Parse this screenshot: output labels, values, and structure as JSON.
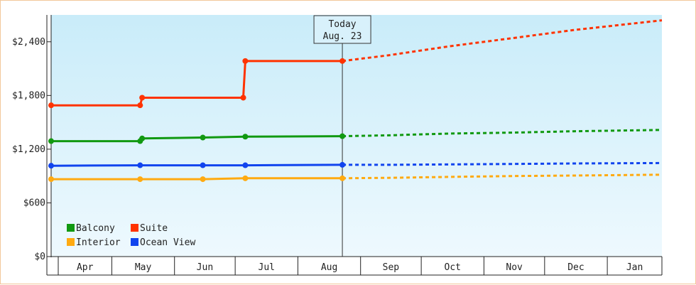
{
  "chart_data": {
    "type": "line",
    "title": "",
    "xlabel": "",
    "ylabel": "",
    "x_tick_labels": [
      "Apr",
      "May",
      "Jun",
      "Jul",
      "Aug",
      "Sep",
      "Oct",
      "Nov",
      "Dec",
      "Jan"
    ],
    "y_ticks": [
      0,
      600,
      1200,
      1800,
      2400
    ],
    "y_tick_labels": [
      "$0",
      "$600",
      "$1,200",
      "$1,800",
      "$2,400"
    ],
    "ylim": [
      0,
      2700
    ],
    "xlim": [
      "Apr 1",
      "Jan 28"
    ],
    "today_marker": {
      "line1": "Today",
      "line2": "Aug. 23",
      "date": "Aug 23"
    },
    "legend": {
      "placement": "bottom-left"
    },
    "series": [
      {
        "name": "Suite",
        "color": "#ff3300",
        "actual": [
          [
            "Apr 1",
            1690
          ],
          [
            "May 15",
            1690
          ],
          [
            "May 16",
            1775
          ],
          [
            "Jul 5",
            1775
          ],
          [
            "Jul 6",
            2185
          ],
          [
            "Aug 23",
            2185
          ]
        ],
        "forecast": [
          [
            "Aug 23",
            2185
          ],
          [
            "Sep 15",
            2250
          ],
          [
            "Oct 15",
            2350
          ],
          [
            "Nov 15",
            2440
          ],
          [
            "Dec 15",
            2530
          ],
          [
            "Jan 28",
            2640
          ]
        ]
      },
      {
        "name": "Balcony",
        "color": "#119911",
        "actual": [
          [
            "Apr 1",
            1290
          ],
          [
            "May 15",
            1290
          ],
          [
            "May 16",
            1320
          ],
          [
            "Jun 15",
            1330
          ],
          [
            "Jul 6",
            1340
          ],
          [
            "Aug 23",
            1345
          ]
        ],
        "forecast": [
          [
            "Aug 23",
            1345
          ],
          [
            "Sep 15",
            1355
          ],
          [
            "Oct 15",
            1375
          ],
          [
            "Nov 15",
            1385
          ],
          [
            "Dec 15",
            1400
          ],
          [
            "Jan 28",
            1415
          ]
        ]
      },
      {
        "name": "Ocean View",
        "color": "#1144ee",
        "actual": [
          [
            "Apr 1",
            1015
          ],
          [
            "May 15",
            1020
          ],
          [
            "Jun 15",
            1020
          ],
          [
            "Jul 6",
            1020
          ],
          [
            "Aug 23",
            1025
          ]
        ],
        "forecast": [
          [
            "Aug 23",
            1025
          ],
          [
            "Sep 15",
            1025
          ],
          [
            "Oct 15",
            1030
          ],
          [
            "Nov 15",
            1035
          ],
          [
            "Dec 15",
            1040
          ],
          [
            "Jan 28",
            1045
          ]
        ]
      },
      {
        "name": "Interior",
        "color": "#ffaa11",
        "actual": [
          [
            "Apr 1",
            865
          ],
          [
            "May 15",
            865
          ],
          [
            "Jun 15",
            865
          ],
          [
            "Jul 6",
            875
          ],
          [
            "Aug 23",
            875
          ]
        ],
        "forecast": [
          [
            "Aug 23",
            875
          ],
          [
            "Sep 15",
            880
          ],
          [
            "Oct 15",
            890
          ],
          [
            "Nov 15",
            900
          ],
          [
            "Dec 15",
            905
          ],
          [
            "Jan 28",
            915
          ]
        ]
      }
    ],
    "legend_order": [
      "Balcony",
      "Suite",
      "Interior",
      "Ocean View"
    ]
  }
}
